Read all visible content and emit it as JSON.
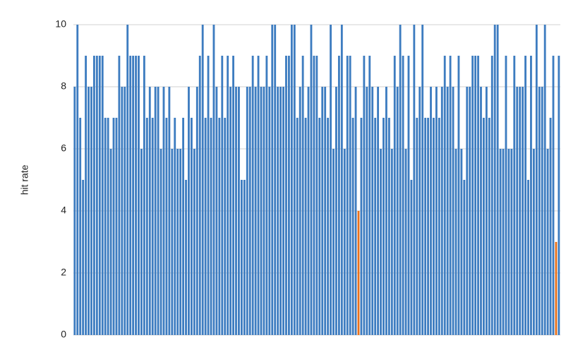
{
  "chart_data": {
    "type": "bar",
    "y_label": "hit rate",
    "values": [
      8,
      10,
      7,
      5,
      9,
      8,
      8,
      9,
      9,
      9,
      9,
      7,
      7,
      6,
      7,
      7,
      9,
      8,
      8,
      10,
      9,
      9,
      9,
      9,
      6,
      9,
      7,
      8,
      7,
      8,
      8,
      6,
      8,
      7,
      8,
      6,
      7,
      6,
      6,
      7,
      5,
      8,
      7,
      6,
      8,
      9,
      10,
      7,
      9,
      7,
      10,
      8,
      7,
      9,
      7,
      9,
      8,
      9,
      8,
      8,
      5,
      5,
      8,
      8,
      9,
      8,
      9,
      8,
      8,
      9,
      8,
      10,
      10,
      8,
      8,
      8,
      9,
      9,
      10,
      10,
      7,
      8,
      9,
      7,
      8,
      10,
      9,
      9,
      7,
      8,
      8,
      7,
      10,
      6,
      8,
      9,
      10,
      6,
      9,
      9,
      7,
      8,
      4,
      7,
      9,
      8,
      9,
      8,
      7,
      8,
      6,
      7,
      8,
      7,
      6,
      9,
      8,
      10,
      9,
      6,
      9,
      5,
      10,
      7,
      8,
      10,
      7,
      7,
      8,
      7,
      8,
      7,
      8,
      9,
      8,
      9,
      8,
      6,
      9,
      6,
      5,
      8,
      8,
      9,
      9,
      9,
      8,
      7,
      8,
      7,
      9,
      10,
      10,
      6,
      6,
      9,
      6,
      6,
      9,
      8,
      8,
      8,
      9,
      5,
      9,
      6,
      10,
      8,
      8,
      10,
      6,
      7,
      9,
      3,
      9
    ],
    "colors": [
      "#3d7cc0",
      "#3d7cc0",
      "#3d7cc0",
      "#3d7cc0",
      "#3d7cc0",
      "#3d7cc0",
      "#3d7cc0",
      "#3d7cc0",
      "#3d7cc0",
      "#3d7cc0",
      "#3d7cc0",
      "#3d7cc0",
      "#3d7cc0",
      "#3d7cc0",
      "#3d7cc0",
      "#3d7cc0",
      "#3d7cc0",
      "#3d7cc0",
      "#3d7cc0",
      "#3d7cc0",
      "#3d7cc0",
      "#3d7cc0",
      "#3d7cc0",
      "#3d7cc0",
      "#3d7cc0",
      "#3d7cc0",
      "#3d7cc0",
      "#3d7cc0",
      "#3d7cc0",
      "#3d7cc0",
      "#3d7cc0",
      "#3d7cc0",
      "#3d7cc0",
      "#3d7cc0",
      "#3d7cc0",
      "#3d7cc0",
      "#3d7cc0",
      "#3d7cc0",
      "#3d7cc0",
      "#3d7cc0",
      "#3d7cc0",
      "#3d7cc0",
      "#3d7cc0",
      "#3d7cc0",
      "#3d7cc0",
      "#3d7cc0",
      "#3d7cc0",
      "#3d7cc0",
      "#3d7cc0",
      "#3d7cc0",
      "#3d7cc0",
      "#3d7cc0",
      "#3d7cc0",
      "#3d7cc0",
      "#3d7cc0",
      "#3d7cc0",
      "#3d7cc0",
      "#3d7cc0",
      "#3d7cc0",
      "#3d7cc0",
      "#3d7cc0",
      "#3d7cc0",
      "#3d7cc0",
      "#3d7cc0",
      "#3d7cc0",
      "#3d7cc0",
      "#3d7cc0",
      "#3d7cc0",
      "#3d7cc0",
      "#3d7cc0",
      "#3d7cc0",
      "#3d7cc0",
      "#3d7cc0",
      "#3d7cc0",
      "#3d7cc0",
      "#3d7cc0",
      "#3d7cc0",
      "#3d7cc0",
      "#3d7cc0",
      "#3d7cc0",
      "#3d7cc0",
      "#3d7cc0",
      "#3d7cc0",
      "#3d7cc0",
      "#3d7cc0",
      "#3d7cc0",
      "#3d7cc0",
      "#3d7cc0",
      "#3d7cc0",
      "#3d7cc0",
      "#3d7cc0",
      "#3d7cc0",
      "#3d7cc0",
      "#3d7cc0",
      "#3d7cc0",
      "#3d7cc0",
      "#3d7cc0",
      "#3d7cc0",
      "#3d7cc0",
      "#3d7cc0",
      "#3d7cc0",
      "#3d7cc0",
      "#e8711c",
      "#3d7cc0",
      "#3d7cc0",
      "#3d7cc0",
      "#3d7cc0",
      "#3d7cc0",
      "#3d7cc0",
      "#3d7cc0",
      "#3d7cc0",
      "#3d7cc0",
      "#3d7cc0",
      "#3d7cc0",
      "#3d7cc0",
      "#3d7cc0",
      "#3d7cc0",
      "#3d7cc0",
      "#3d7cc0",
      "#3d7cc0",
      "#3d7cc0",
      "#3d7cc0",
      "#3d7cc0",
      "#3d7cc0",
      "#3d7cc0",
      "#3d7cc0",
      "#3d7cc0",
      "#3d7cc0",
      "#3d7cc0",
      "#3d7cc0",
      "#3d7cc0",
      "#3d7cc0",
      "#3d7cc0",
      "#3d7cc0",
      "#3d7cc0",
      "#3d7cc0",
      "#3d7cc0",
      "#3d7cc0",
      "#3d7cc0",
      "#3d7cc0",
      "#3d7cc0",
      "#3d7cc0",
      "#3d7cc0",
      "#3d7cc0",
      "#3d7cc0",
      "#3d7cc0",
      "#3d7cc0",
      "#3d7cc0",
      "#3d7cc0",
      "#3d7cc0",
      "#3d7cc0",
      "#3d7cc0",
      "#3d7cc0",
      "#3d7cc0",
      "#3d7cc0",
      "#3d7cc0",
      "#3d7cc0",
      "#3d7cc0",
      "#3d7cc0",
      "#3d7cc0",
      "#3d7cc0",
      "#3d7cc0",
      "#3d7cc0",
      "#3d7cc0",
      "#3d7cc0",
      "#3d7cc0",
      "#3d7cc0",
      "#3d7cc0",
      "#3d7cc0",
      "#3d7cc0",
      "#3d7cc0",
      "#3d7cc0",
      "#3d7cc0",
      "#e8711c",
      "#3d7cc0"
    ],
    "ylim": [
      0,
      10
    ],
    "yticks": [
      0,
      2,
      4,
      6,
      8,
      10
    ],
    "grid": true
  }
}
